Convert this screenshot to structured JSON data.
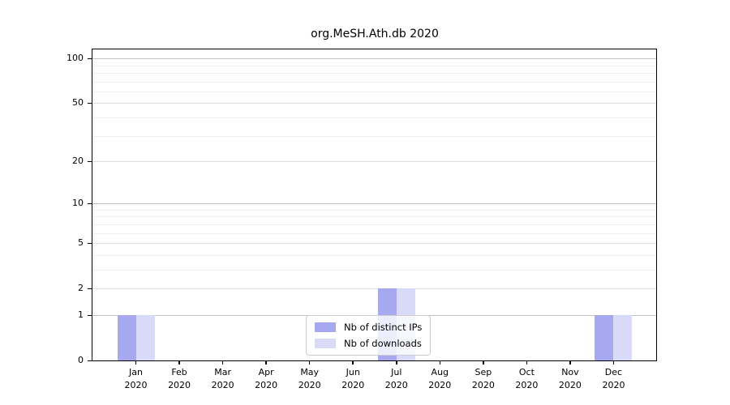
{
  "title": "org.MeSH.Ath.db 2020",
  "chart_data": {
    "type": "bar",
    "title": "org.MeSH.Ath.db 2020",
    "categories": [
      "Jan 2020",
      "Feb 2020",
      "Mar 2020",
      "Apr 2020",
      "May 2020",
      "Jun 2020",
      "Jul 2020",
      "Aug 2020",
      "Sep 2020",
      "Oct 2020",
      "Nov 2020",
      "Dec 2020"
    ],
    "series": [
      {
        "name": "Nb of distinct IPs",
        "color": "#a6a8f0",
        "values": [
          1,
          0,
          0,
          0,
          0,
          0,
          2,
          0,
          0,
          0,
          0,
          1
        ]
      },
      {
        "name": "Nb of downloads",
        "color": "#d8daf8",
        "values": [
          1,
          0,
          0,
          0,
          0,
          0,
          2,
          0,
          0,
          0,
          0,
          1
        ]
      }
    ],
    "y_axis": {
      "scale": "log1p",
      "ticks": [
        0,
        1,
        2,
        5,
        10,
        20,
        50,
        100
      ],
      "tick_labels": [
        "0",
        "1",
        "2",
        "5",
        "10",
        "20",
        "50",
        "100"
      ],
      "decade_gridlines": [
        1,
        10,
        100
      ],
      "minor_gridlines": [
        3,
        4,
        6,
        7,
        8,
        9,
        30,
        40,
        60,
        70,
        80,
        90
      ],
      "ymax": 115
    },
    "xlabel": "",
    "ylabel": "",
    "grid": true,
    "legend_position": "bottom-center"
  }
}
